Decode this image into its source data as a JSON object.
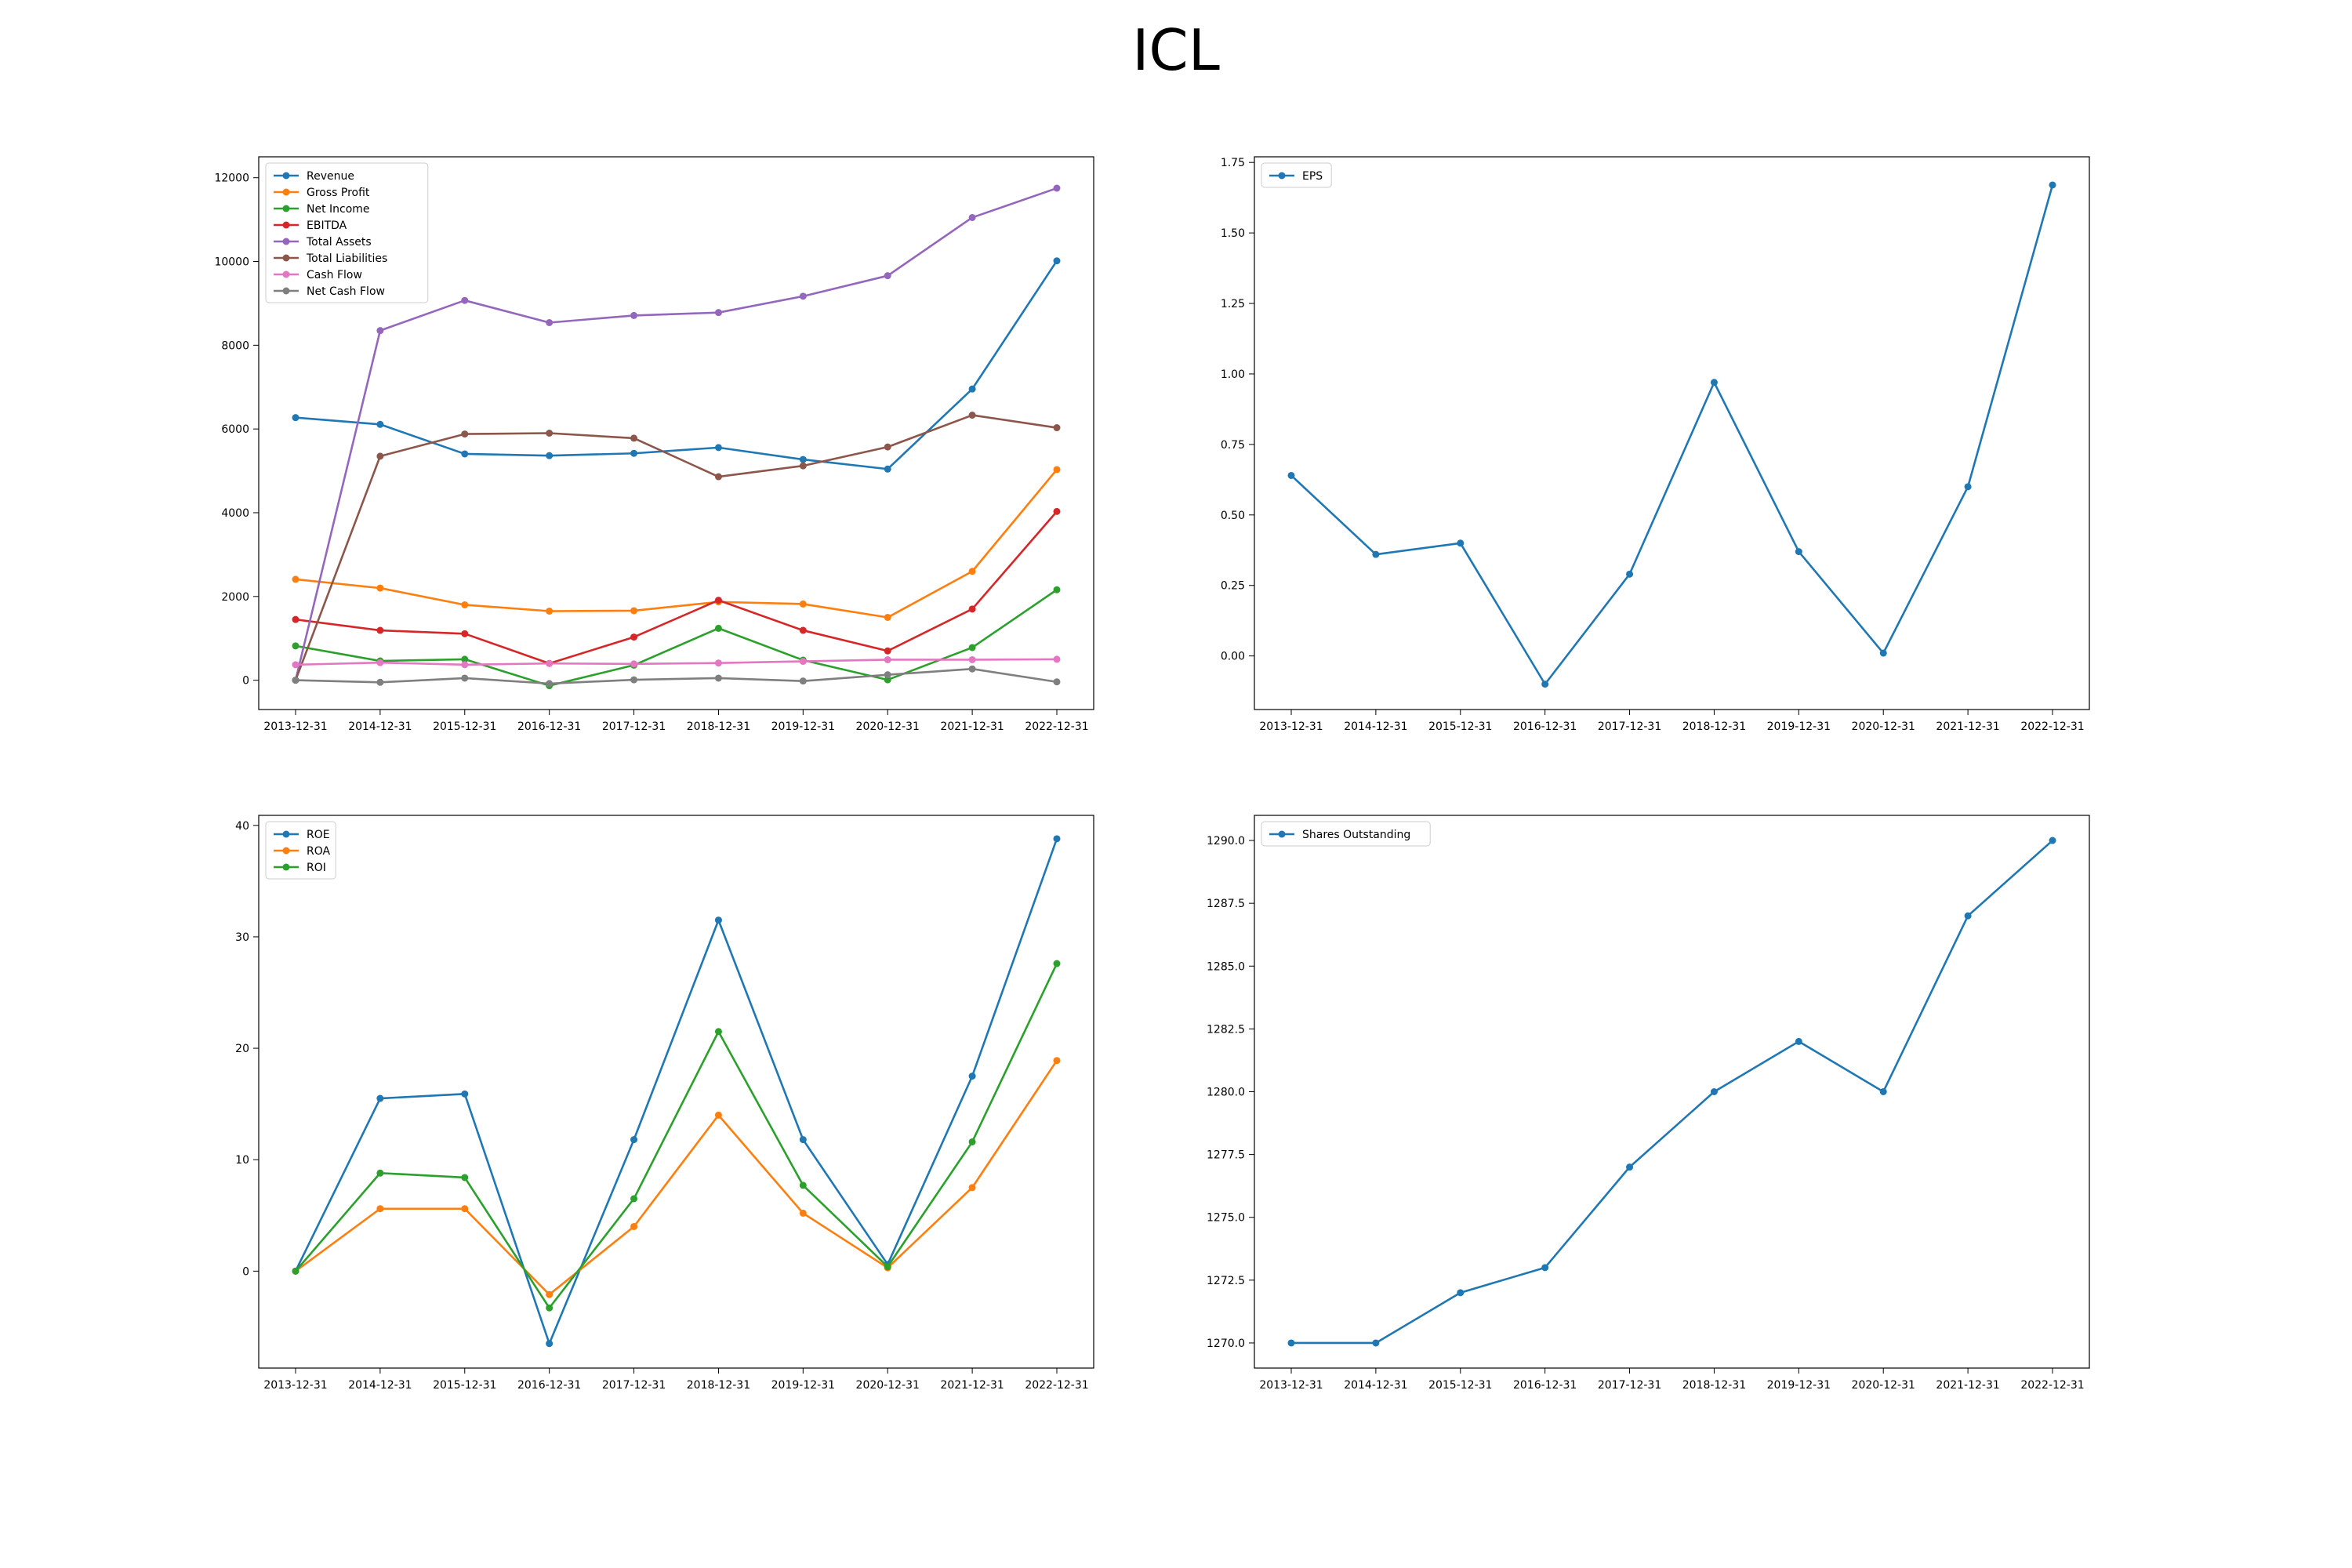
{
  "figure": {
    "title": "ICL"
  },
  "chart_data": [
    {
      "type": "line",
      "categories": [
        "2013-12-31",
        "2014-12-31",
        "2015-12-31",
        "2016-12-31",
        "2017-12-31",
        "2018-12-31",
        "2019-12-31",
        "2020-12-31",
        "2021-12-31",
        "2022-12-31"
      ],
      "ylim": [
        -700,
        12500
      ],
      "yticks": [
        0,
        2000,
        4000,
        6000,
        8000,
        10000,
        12000
      ],
      "ytick_labels": [
        "0",
        "2000",
        "4000",
        "6000",
        "8000",
        "10000",
        "12000"
      ],
      "grid": false,
      "legend": "upper-left",
      "series": [
        {
          "name": "Revenue",
          "color": "#1f77b4",
          "values": [
            6272,
            6110,
            5405,
            5363,
            5418,
            5556,
            5271,
            5043,
            6955,
            10015
          ]
        },
        {
          "name": "Gross Profit",
          "color": "#ff7f0e",
          "values": [
            2410,
            2200,
            1800,
            1650,
            1660,
            1870,
            1820,
            1500,
            2600,
            5030
          ]
        },
        {
          "name": "Net Income",
          "color": "#2ca02c",
          "values": [
            820,
            460,
            500,
            -130,
            360,
            1240,
            480,
            10,
            780,
            2160
          ]
        },
        {
          "name": "EBITDA",
          "color": "#d62728",
          "values": [
            1450,
            1190,
            1110,
            400,
            1030,
            1910,
            1190,
            700,
            1700,
            4030
          ]
        },
        {
          "name": "Total Assets",
          "color": "#9467bd",
          "values": [
            0,
            8350,
            9070,
            8540,
            8710,
            8780,
            9170,
            9660,
            11050,
            11750
          ]
        },
        {
          "name": "Total Liabilities",
          "color": "#8c564b",
          "values": [
            0,
            5350,
            5880,
            5900,
            5780,
            4860,
            5120,
            5570,
            6330,
            6030
          ]
        },
        {
          "name": "Cash Flow",
          "color": "#e377c2",
          "values": [
            370,
            420,
            370,
            400,
            390,
            410,
            450,
            490,
            490,
            500
          ]
        },
        {
          "name": "Net Cash Flow",
          "color": "#7f7f7f",
          "values": [
            0,
            -50,
            50,
            -80,
            10,
            50,
            -20,
            130,
            270,
            -40
          ]
        }
      ]
    },
    {
      "type": "line",
      "categories": [
        "2013-12-31",
        "2014-12-31",
        "2015-12-31",
        "2016-12-31",
        "2017-12-31",
        "2018-12-31",
        "2019-12-31",
        "2020-12-31",
        "2021-12-31",
        "2022-12-31"
      ],
      "ylim": [
        -0.19,
        1.77
      ],
      "yticks": [
        0,
        0.25,
        0.5,
        0.75,
        1.0,
        1.25,
        1.5,
        1.75
      ],
      "ytick_labels": [
        "0.00",
        "0.25",
        "0.50",
        "0.75",
        "1.00",
        "1.25",
        "1.50",
        "1.75"
      ],
      "grid": false,
      "legend": "upper-left",
      "series": [
        {
          "name": "EPS",
          "color": "#1f77b4",
          "values": [
            0.64,
            0.36,
            0.4,
            -0.1,
            0.29,
            0.97,
            0.37,
            0.01,
            0.6,
            1.67
          ]
        }
      ]
    },
    {
      "type": "line",
      "categories": [
        "2013-12-31",
        "2014-12-31",
        "2015-12-31",
        "2016-12-31",
        "2017-12-31",
        "2018-12-31",
        "2019-12-31",
        "2020-12-31",
        "2021-12-31",
        "2022-12-31"
      ],
      "ylim": [
        -8.7,
        40.9
      ],
      "yticks": [
        0,
        10,
        20,
        30,
        40
      ],
      "ytick_labels": [
        "0",
        "10",
        "20",
        "30",
        "40"
      ],
      "grid": false,
      "legend": "upper-left",
      "series": [
        {
          "name": "ROE",
          "color": "#1f77b4",
          "values": [
            0,
            15.5,
            15.9,
            -6.5,
            11.8,
            31.5,
            11.8,
            0.6,
            17.5,
            38.8
          ]
        },
        {
          "name": "ROA",
          "color": "#ff7f0e",
          "values": [
            0,
            5.6,
            5.6,
            -2.1,
            4.0,
            14.0,
            5.2,
            0.3,
            7.5,
            18.9
          ]
        },
        {
          "name": "ROI",
          "color": "#2ca02c",
          "values": [
            0,
            8.8,
            8.4,
            -3.3,
            6.5,
            21.5,
            7.7,
            0.4,
            11.6,
            27.6
          ]
        }
      ]
    },
    {
      "type": "line",
      "categories": [
        "2013-12-31",
        "2014-12-31",
        "2015-12-31",
        "2016-12-31",
        "2017-12-31",
        "2018-12-31",
        "2019-12-31",
        "2020-12-31",
        "2021-12-31",
        "2022-12-31"
      ],
      "ylim": [
        1269.0,
        1291.0
      ],
      "yticks": [
        1270,
        1272.5,
        1275,
        1277.5,
        1280,
        1282.5,
        1285,
        1287.5,
        1290
      ],
      "ytick_labels": [
        "1270.0",
        "1272.5",
        "1275.0",
        "1277.5",
        "1280.0",
        "1282.5",
        "1285.0",
        "1287.5",
        "1290.0"
      ],
      "grid": false,
      "legend": "upper-left",
      "series": [
        {
          "name": "Shares Outstanding",
          "color": "#1f77b4",
          "values": [
            1270,
            1270,
            1272,
            1273,
            1277,
            1280,
            1282,
            1280,
            1287,
            1290
          ]
        }
      ]
    }
  ]
}
